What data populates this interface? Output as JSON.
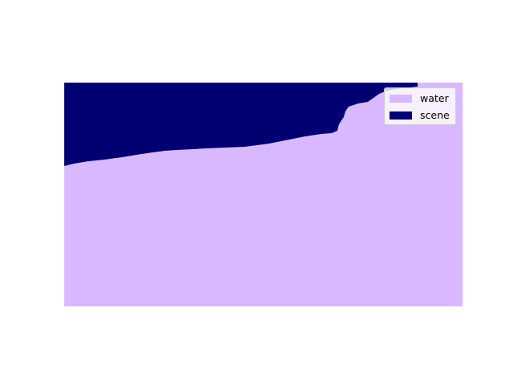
{
  "legend": {
    "items": [
      {
        "label": "water",
        "color": "#d8b9ff"
      },
      {
        "label": "scene",
        "color": "#000073"
      }
    ]
  },
  "colors": {
    "water": "#d8b9ff",
    "scene": "#000073",
    "background": "#ffffff"
  }
}
